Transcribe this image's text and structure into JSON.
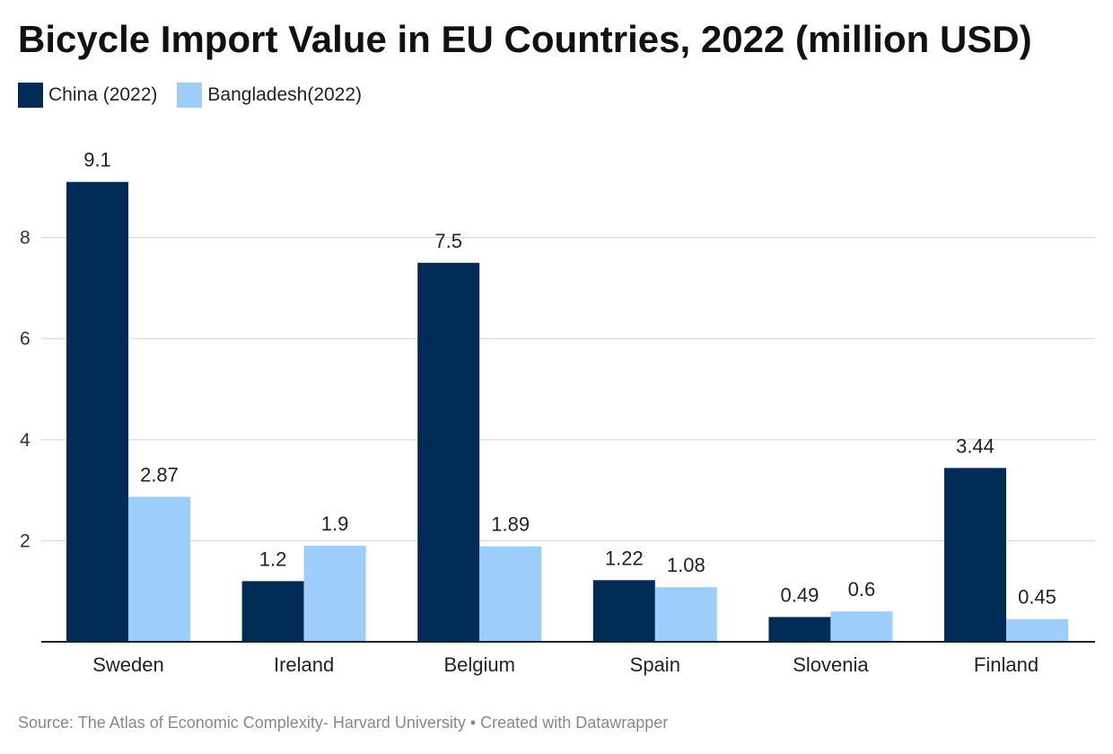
{
  "chart_data": {
    "type": "bar",
    "title": "Bicycle Import Value in EU Countries, 2022 (million USD)",
    "categories": [
      "Sweden",
      "Ireland",
      "Belgium",
      "Spain",
      "Slovenia",
      "Finland"
    ],
    "series": [
      {
        "name": "China (2022)",
        "color": "#002B55",
        "values": [
          9.1,
          1.2,
          7.5,
          1.22,
          0.49,
          3.44
        ],
        "labels": [
          "9.1",
          "1.2",
          "7.5",
          "1.22",
          "0.49",
          "3.44"
        ]
      },
      {
        "name": "Bangladesh(2022)",
        "color": "#9DCEFB",
        "values": [
          2.87,
          1.9,
          1.89,
          1.08,
          0.6,
          0.45
        ],
        "labels": [
          "2.87",
          "1.9",
          "1.89",
          "1.08",
          "0.6",
          "0.45"
        ]
      }
    ],
    "ylim": [
      0,
      9.1
    ],
    "yticks": [
      2,
      4,
      6,
      8
    ],
    "ytick_labels": [
      "2",
      "4",
      "6",
      "8"
    ],
    "grid": true,
    "legend_position": "top-left",
    "source": "Source: The Atlas of Economic Complexity- Harvard University • Created with Datawrapper"
  }
}
